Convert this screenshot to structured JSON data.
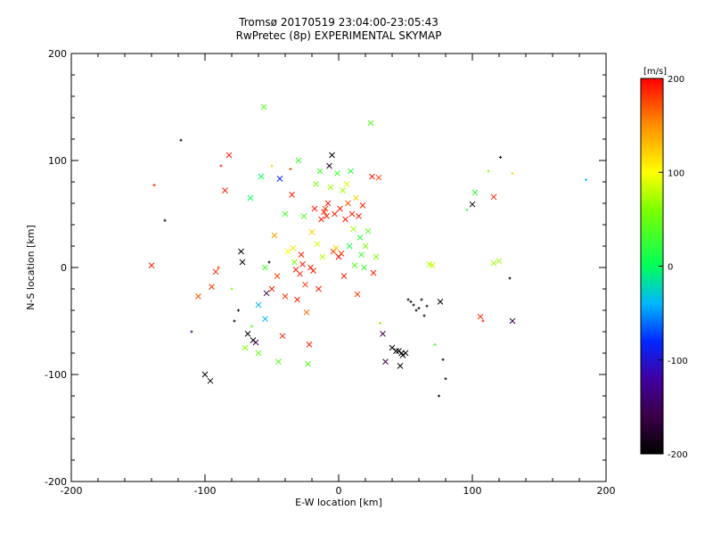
{
  "chart_data": {
    "type": "scatter",
    "title": "Tromsø 20170519 23:04:00-23:05:43",
    "subtitle": "RwPretec (8p) EXPERIMENTAL SKYMAP",
    "xlabel": "E-W location [km]",
    "ylabel": "N-S location [km]",
    "xlim": [
      -200,
      200
    ],
    "ylim": [
      -200,
      200
    ],
    "x_ticks": [
      "-200",
      "-100",
      "0",
      "100",
      "200"
    ],
    "y_ticks": [
      "-200",
      "-100",
      "0",
      "100",
      "200"
    ],
    "grid": true,
    "colorbar": {
      "label": "[m/s]",
      "min": -200,
      "max": 200,
      "ticks": [
        "-200",
        "-100",
        "0",
        "100",
        "200"
      ]
    },
    "points": [
      {
        "x": -140,
        "y": 2,
        "v": 190,
        "m": "x"
      },
      {
        "x": -138,
        "y": 77,
        "v": 190,
        "m": "+"
      },
      {
        "x": -130,
        "y": 44,
        "v": -200,
        "m": "+"
      },
      {
        "x": -118,
        "y": 119,
        "v": -200,
        "m": "+"
      },
      {
        "x": -110,
        "y": -60,
        "v": -140,
        "m": "+"
      },
      {
        "x": -105,
        "y": -27,
        "v": 170,
        "m": "x"
      },
      {
        "x": -100,
        "y": -100,
        "v": -200,
        "m": "x"
      },
      {
        "x": -96,
        "y": -106,
        "v": -200,
        "m": "x"
      },
      {
        "x": -95,
        "y": -18,
        "v": 180,
        "m": "x"
      },
      {
        "x": -92,
        "y": -4,
        "v": 190,
        "m": "x"
      },
      {
        "x": -90,
        "y": 0,
        "v": 180,
        "m": "+"
      },
      {
        "x": -88,
        "y": 95,
        "v": 190,
        "m": "+"
      },
      {
        "x": -85,
        "y": 72,
        "v": 190,
        "m": "x"
      },
      {
        "x": -82,
        "y": 105,
        "v": 190,
        "m": "x"
      },
      {
        "x": -80,
        "y": -20,
        "v": 60,
        "m": "+"
      },
      {
        "x": -78,
        "y": -50,
        "v": -200,
        "m": "+"
      },
      {
        "x": -75,
        "y": -40,
        "v": -200,
        "m": "+"
      },
      {
        "x": -73,
        "y": 15,
        "v": -200,
        "m": "x"
      },
      {
        "x": -72,
        "y": 5,
        "v": -200,
        "m": "x"
      },
      {
        "x": -70,
        "y": -75,
        "v": 60,
        "m": "x"
      },
      {
        "x": -68,
        "y": -62,
        "v": -200,
        "m": "x"
      },
      {
        "x": -66,
        "y": 65,
        "v": 0,
        "m": "x"
      },
      {
        "x": -65,
        "y": -55,
        "v": 40,
        "m": "+"
      },
      {
        "x": -64,
        "y": -68,
        "v": -200,
        "m": "x"
      },
      {
        "x": -62,
        "y": -70,
        "v": -160,
        "m": "x"
      },
      {
        "x": -60,
        "y": -35,
        "v": -40,
        "m": "x"
      },
      {
        "x": -60,
        "y": -80,
        "v": 50,
        "m": "x"
      },
      {
        "x": -58,
        "y": 85,
        "v": 0,
        "m": "x"
      },
      {
        "x": -56,
        "y": 150,
        "v": 40,
        "m": "x"
      },
      {
        "x": -55,
        "y": -48,
        "v": -40,
        "m": "x"
      },
      {
        "x": -55,
        "y": 0,
        "v": 30,
        "m": "x"
      },
      {
        "x": -54,
        "y": -24,
        "v": -160,
        "m": "x"
      },
      {
        "x": -52,
        "y": 5,
        "v": -200,
        "m": "+"
      },
      {
        "x": -50,
        "y": 95,
        "v": 120,
        "m": "+"
      },
      {
        "x": -50,
        "y": -20,
        "v": 190,
        "m": "x"
      },
      {
        "x": -48,
        "y": 30,
        "v": 140,
        "m": "x"
      },
      {
        "x": -46,
        "y": -8,
        "v": 180,
        "m": "x"
      },
      {
        "x": -45,
        "y": -88,
        "v": 40,
        "m": "x"
      },
      {
        "x": -44,
        "y": 83,
        "v": -80,
        "m": "x"
      },
      {
        "x": -42,
        "y": -64,
        "v": 190,
        "m": "x"
      },
      {
        "x": -40,
        "y": -27,
        "v": 180,
        "m": "x"
      },
      {
        "x": -40,
        "y": 50,
        "v": 30,
        "m": "x"
      },
      {
        "x": -38,
        "y": 15,
        "v": 100,
        "m": "x"
      },
      {
        "x": -36,
        "y": 92,
        "v": 180,
        "m": "+"
      },
      {
        "x": -35,
        "y": 68,
        "v": 190,
        "m": "x"
      },
      {
        "x": -34,
        "y": 18,
        "v": 110,
        "m": "x"
      },
      {
        "x": -33,
        "y": 5,
        "v": 60,
        "m": "x"
      },
      {
        "x": -32,
        "y": -2,
        "v": 190,
        "m": "x"
      },
      {
        "x": -31,
        "y": -30,
        "v": 190,
        "m": "x"
      },
      {
        "x": -30,
        "y": 100,
        "v": 30,
        "m": "x"
      },
      {
        "x": -29,
        "y": -6,
        "v": 190,
        "m": "x"
      },
      {
        "x": -28,
        "y": 12,
        "v": 190,
        "m": "x"
      },
      {
        "x": -27,
        "y": 3,
        "v": 190,
        "m": "x"
      },
      {
        "x": -26,
        "y": 48,
        "v": 40,
        "m": "x"
      },
      {
        "x": -25,
        "y": -16,
        "v": 180,
        "m": "x"
      },
      {
        "x": -24,
        "y": -42,
        "v": 160,
        "m": "x"
      },
      {
        "x": -23,
        "y": -90,
        "v": 40,
        "m": "x"
      },
      {
        "x": -22,
        "y": -72,
        "v": 190,
        "m": "x"
      },
      {
        "x": -21,
        "y": 0,
        "v": 190,
        "m": "x"
      },
      {
        "x": -20,
        "y": 33,
        "v": 120,
        "m": "x"
      },
      {
        "x": -19,
        "y": -3,
        "v": 190,
        "m": "x"
      },
      {
        "x": -18,
        "y": 55,
        "v": 190,
        "m": "x"
      },
      {
        "x": -17,
        "y": 78,
        "v": 60,
        "m": "x"
      },
      {
        "x": -16,
        "y": 22,
        "v": 90,
        "m": "x"
      },
      {
        "x": -15,
        "y": -20,
        "v": 190,
        "m": "x"
      },
      {
        "x": -14,
        "y": 90,
        "v": 30,
        "m": "x"
      },
      {
        "x": -13,
        "y": 45,
        "v": 190,
        "m": "x"
      },
      {
        "x": -12,
        "y": 10,
        "v": 80,
        "m": "x"
      },
      {
        "x": -11,
        "y": 52,
        "v": 190,
        "m": "x"
      },
      {
        "x": -10,
        "y": 55,
        "v": 180,
        "m": "x"
      },
      {
        "x": -9,
        "y": 48,
        "v": 190,
        "m": "x"
      },
      {
        "x": -8,
        "y": 60,
        "v": 190,
        "m": "x"
      },
      {
        "x": -7,
        "y": 95,
        "v": -180,
        "m": "x"
      },
      {
        "x": -6,
        "y": 75,
        "v": 70,
        "m": "x"
      },
      {
        "x": -5,
        "y": 105,
        "v": -200,
        "m": "x"
      },
      {
        "x": -4,
        "y": 15,
        "v": 180,
        "m": "x"
      },
      {
        "x": -3,
        "y": 50,
        "v": 190,
        "m": "x"
      },
      {
        "x": -2,
        "y": 18,
        "v": 120,
        "m": "x"
      },
      {
        "x": -1,
        "y": 88,
        "v": 30,
        "m": "x"
      },
      {
        "x": 0,
        "y": 10,
        "v": 200,
        "m": "x"
      },
      {
        "x": 1,
        "y": 55,
        "v": 190,
        "m": "x"
      },
      {
        "x": 2,
        "y": 13,
        "v": 180,
        "m": "x"
      },
      {
        "x": 3,
        "y": 72,
        "v": 70,
        "m": "x"
      },
      {
        "x": 4,
        "y": -8,
        "v": 190,
        "m": "x"
      },
      {
        "x": 5,
        "y": 45,
        "v": 190,
        "m": "x"
      },
      {
        "x": 6,
        "y": 78,
        "v": 90,
        "m": "x"
      },
      {
        "x": 7,
        "y": 60,
        "v": 170,
        "m": "x"
      },
      {
        "x": 8,
        "y": 20,
        "v": 10,
        "m": "x"
      },
      {
        "x": 9,
        "y": 90,
        "v": 20,
        "m": "x"
      },
      {
        "x": 10,
        "y": 50,
        "v": 190,
        "m": "x"
      },
      {
        "x": 11,
        "y": 36,
        "v": 70,
        "m": "x"
      },
      {
        "x": 12,
        "y": 2,
        "v": 40,
        "m": "x"
      },
      {
        "x": 13,
        "y": 65,
        "v": 120,
        "m": "x"
      },
      {
        "x": 14,
        "y": -25,
        "v": 180,
        "m": "x"
      },
      {
        "x": 15,
        "y": 48,
        "v": 190,
        "m": "x"
      },
      {
        "x": 16,
        "y": 28,
        "v": 20,
        "m": "x"
      },
      {
        "x": 17,
        "y": 12,
        "v": 30,
        "m": "x"
      },
      {
        "x": 18,
        "y": 58,
        "v": 190,
        "m": "x"
      },
      {
        "x": 19,
        "y": 0,
        "v": 30,
        "m": "x"
      },
      {
        "x": 20,
        "y": 20,
        "v": 60,
        "m": "x"
      },
      {
        "x": 22,
        "y": 34,
        "v": 40,
        "m": "x"
      },
      {
        "x": 24,
        "y": 135,
        "v": 40,
        "m": "x"
      },
      {
        "x": 25,
        "y": 85,
        "v": 190,
        "m": "x"
      },
      {
        "x": 26,
        "y": -5,
        "v": 190,
        "m": "x"
      },
      {
        "x": 28,
        "y": 10,
        "v": 60,
        "m": "x"
      },
      {
        "x": 30,
        "y": 84,
        "v": 180,
        "m": "x"
      },
      {
        "x": 31,
        "y": -52,
        "v": 60,
        "m": "+"
      },
      {
        "x": 33,
        "y": -62,
        "v": -160,
        "m": "x"
      },
      {
        "x": 35,
        "y": -88,
        "v": -160,
        "m": "x"
      },
      {
        "x": 40,
        "y": -75,
        "v": -200,
        "m": "x"
      },
      {
        "x": 43,
        "y": -78,
        "v": -200,
        "m": "x"
      },
      {
        "x": 45,
        "y": -78,
        "v": -200,
        "m": "x"
      },
      {
        "x": 46,
        "y": -92,
        "v": -200,
        "m": "x"
      },
      {
        "x": 47,
        "y": -80,
        "v": -200,
        "m": "x"
      },
      {
        "x": 48,
        "y": -82,
        "v": -200,
        "m": "x"
      },
      {
        "x": 50,
        "y": -80,
        "v": -200,
        "m": "x"
      },
      {
        "x": 52,
        "y": -30,
        "v": -200,
        "m": "+"
      },
      {
        "x": 54,
        "y": -32,
        "v": -200,
        "m": "+"
      },
      {
        "x": 56,
        "y": -35,
        "v": -200,
        "m": "+"
      },
      {
        "x": 58,
        "y": -40,
        "v": -200,
        "m": "+"
      },
      {
        "x": 60,
        "y": -38,
        "v": -200,
        "m": "+"
      },
      {
        "x": 62,
        "y": -30,
        "v": -200,
        "m": "+"
      },
      {
        "x": 64,
        "y": -45,
        "v": -200,
        "m": "+"
      },
      {
        "x": 66,
        "y": -36,
        "v": -200,
        "m": "+"
      },
      {
        "x": 68,
        "y": 3,
        "v": 80,
        "m": "x"
      },
      {
        "x": 70,
        "y": 2,
        "v": 80,
        "m": "x"
      },
      {
        "x": 72,
        "y": -72,
        "v": 30,
        "m": "+"
      },
      {
        "x": 75,
        "y": -120,
        "v": -200,
        "m": "+"
      },
      {
        "x": 76,
        "y": -32,
        "v": -200,
        "m": "x"
      },
      {
        "x": 78,
        "y": -86,
        "v": -200,
        "m": "+"
      },
      {
        "x": 80,
        "y": -104,
        "v": -200,
        "m": "+"
      },
      {
        "x": 96,
        "y": 54,
        "v": 20,
        "m": "+"
      },
      {
        "x": 100,
        "y": 59,
        "v": -200,
        "m": "x"
      },
      {
        "x": 102,
        "y": 70,
        "v": 20,
        "m": "x"
      },
      {
        "x": 106,
        "y": -46,
        "v": 190,
        "m": "x"
      },
      {
        "x": 108,
        "y": -50,
        "v": 190,
        "m": "+"
      },
      {
        "x": 112,
        "y": 90,
        "v": 60,
        "m": "+"
      },
      {
        "x": 116,
        "y": 66,
        "v": 190,
        "m": "x"
      },
      {
        "x": 116,
        "y": 4,
        "v": 70,
        "m": "x"
      },
      {
        "x": 120,
        "y": 6,
        "v": 70,
        "m": "x"
      },
      {
        "x": 121,
        "y": 103,
        "v": -200,
        "m": "+"
      },
      {
        "x": 128,
        "y": -10,
        "v": -200,
        "m": "+"
      },
      {
        "x": 130,
        "y": -50,
        "v": -160,
        "m": "x"
      },
      {
        "x": 130,
        "y": 88,
        "v": 120,
        "m": "+"
      },
      {
        "x": 185,
        "y": 82,
        "v": -40,
        "m": "+"
      }
    ]
  }
}
